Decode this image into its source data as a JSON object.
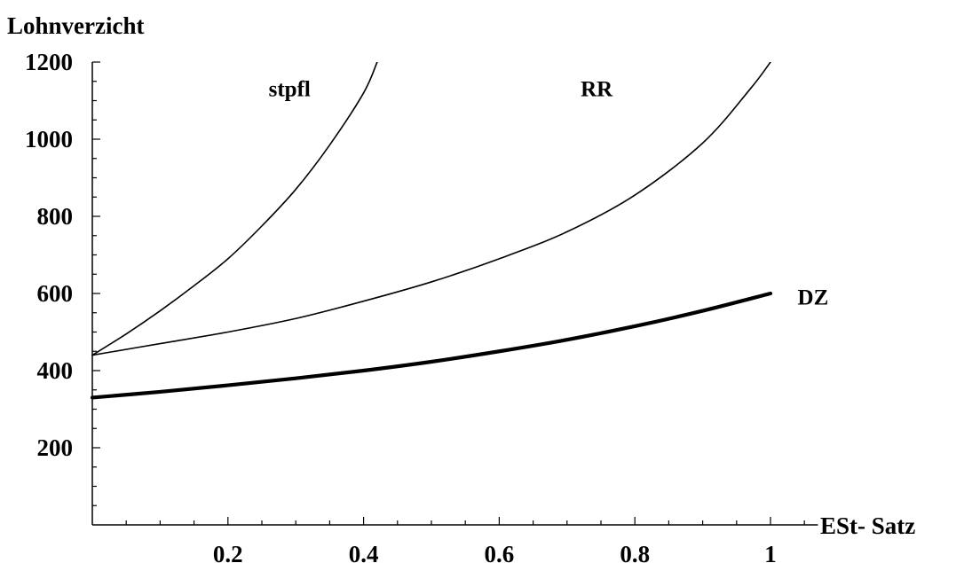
{
  "chart_data": {
    "type": "line",
    "title": "",
    "ylabel": "Lohnverzicht",
    "xlabel": "ESt- Satz",
    "xlim": [
      0,
      1.07
    ],
    "ylim": [
      0,
      1200
    ],
    "x_ticks": [
      0.2,
      0.4,
      0.6,
      0.8,
      1
    ],
    "x_tick_labels": [
      "0.2",
      "0.4",
      "0.6",
      "0.8",
      "1"
    ],
    "y_ticks": [
      200,
      400,
      600,
      800,
      1000,
      1200
    ],
    "y_tick_labels": [
      "200",
      "400",
      "600",
      "800",
      "1000",
      "1200"
    ],
    "grid": false,
    "legend": "none",
    "series": [
      {
        "name": "stpfl",
        "label_at": [
          0.26,
          1130
        ],
        "stroke": "thin",
        "points": [
          [
            0,
            440
          ],
          [
            0.05,
            495
          ],
          [
            0.1,
            555
          ],
          [
            0.15,
            620
          ],
          [
            0.2,
            690
          ],
          [
            0.25,
            775
          ],
          [
            0.3,
            870
          ],
          [
            0.35,
            985
          ],
          [
            0.4,
            1120
          ],
          [
            0.42,
            1200
          ]
        ]
      },
      {
        "name": "RR",
        "label_at": [
          0.72,
          1130
        ],
        "stroke": "thin",
        "points": [
          [
            0,
            440
          ],
          [
            0.1,
            470
          ],
          [
            0.2,
            500
          ],
          [
            0.3,
            535
          ],
          [
            0.4,
            580
          ],
          [
            0.5,
            630
          ],
          [
            0.6,
            690
          ],
          [
            0.7,
            760
          ],
          [
            0.8,
            855
          ],
          [
            0.9,
            990
          ],
          [
            0.97,
            1130
          ],
          [
            1.0,
            1200
          ]
        ]
      },
      {
        "name": "DZ",
        "label_at": [
          1.04,
          590
        ],
        "stroke": "thick",
        "points": [
          [
            0,
            330
          ],
          [
            0.1,
            345
          ],
          [
            0.2,
            362
          ],
          [
            0.3,
            380
          ],
          [
            0.4,
            400
          ],
          [
            0.5,
            423
          ],
          [
            0.6,
            450
          ],
          [
            0.7,
            480
          ],
          [
            0.8,
            515
          ],
          [
            0.9,
            555
          ],
          [
            1.0,
            600
          ]
        ]
      }
    ]
  }
}
